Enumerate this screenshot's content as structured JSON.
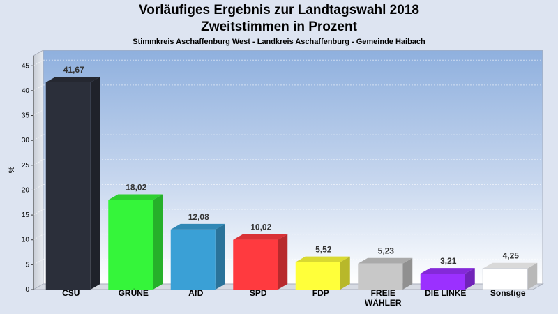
{
  "title": "Vorläufiges Ergebnis zur Landtagswahl 2018",
  "subtitle": "Zweitstimmen in Prozent",
  "caption": "Stimmkreis Aschaffenburg West - Landkreis Aschaffenburg - Gemeinde Haibach",
  "chart_data": {
    "type": "bar",
    "title": "Vorläufiges Ergebnis zur Landtagswahl 2018",
    "subtitle": "Zweitstimmen in Prozent",
    "ylabel": "%",
    "xlabel": "",
    "ylim": [
      0,
      47
    ],
    "yticks": [
      "0",
      "5",
      "10",
      "15",
      "20",
      "25",
      "30",
      "35",
      "40",
      "45"
    ],
    "grid": true,
    "categories": [
      "CSU",
      "GRÜNE",
      "AfD",
      "SPD",
      "FDP",
      "FREIE WÄHLER",
      "DIE LINKE",
      "Sonstige"
    ],
    "category_lines": [
      [
        "CSU"
      ],
      [
        "GRÜNE"
      ],
      [
        "AfD"
      ],
      [
        "SPD"
      ],
      [
        "FDP"
      ],
      [
        "FREIE",
        "WÄHLER"
      ],
      [
        "DIE LINKE"
      ],
      [
        "Sonstige"
      ]
    ],
    "values": [
      41.67,
      18.02,
      12.08,
      10.02,
      5.52,
      5.23,
      3.21,
      4.25
    ],
    "value_labels": [
      "41,67",
      "18,02",
      "12,08",
      "10,02",
      "5,52",
      "5,23",
      "3,21",
      "4,25"
    ],
    "colors": [
      "#2b2f3a",
      "#35f53a",
      "#3aa0d6",
      "#ff3a3f",
      "#ffff3a",
      "#c8c8c8",
      "#9b30ff",
      "#ffffff"
    ]
  }
}
